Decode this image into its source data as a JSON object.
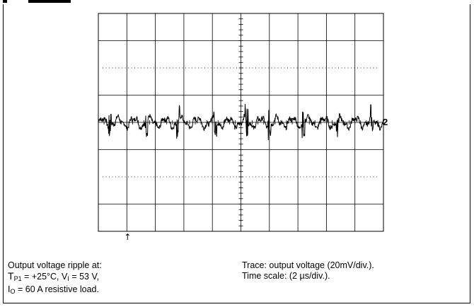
{
  "caption": {
    "line1": "Output voltage ripple  at:",
    "line2_t": "T",
    "line2_t_sub": "P1",
    "line2_rest_a": " = +25°C, V",
    "line2_v_sub": "I",
    "line2_rest_b": " = 53 V,",
    "line3_i": "I",
    "line3_i_sub": "O",
    "line3_rest": " = 60 A resistive load."
  },
  "trace_info": {
    "line1": "Trace: output voltage (20mV/div.).",
    "line2": "Time scale: (2 µs/div.)."
  },
  "chart_data": {
    "type": "line",
    "title": "",
    "xlabel": "",
    "ylabel": "",
    "grid": true,
    "x_divisions": 10,
    "y_divisions": 8,
    "series": [
      {
        "marker": "2"
      }
    ],
    "trigger_marker": "↑",
    "ylim": [
      -4,
      4
    ]
  }
}
